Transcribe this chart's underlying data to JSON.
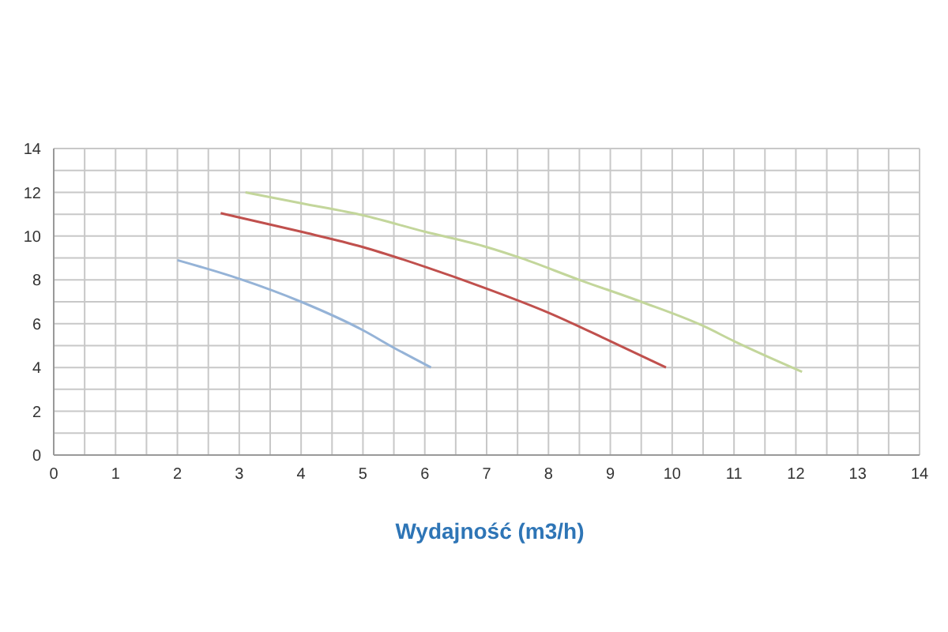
{
  "chart_data": {
    "type": "line",
    "xlabel": "Wydajność (m3/h)",
    "xlim": [
      0,
      14
    ],
    "ylim": [
      0,
      14
    ],
    "xticks": [
      0,
      {
        "value": 0.5,
        "label": null
      },
      1,
      {
        "value": 1.5,
        "label": null
      },
      2,
      {
        "value": 2.5,
        "label": null
      },
      3,
      {
        "value": 3.5,
        "label": null
      },
      4,
      {
        "value": 4.5,
        "label": null
      },
      5,
      {
        "value": 5.5,
        "label": null
      },
      6,
      {
        "value": 6.5,
        "label": null
      },
      7,
      {
        "value": 7.5,
        "label": null
      },
      8,
      {
        "value": 8.5,
        "label": null
      },
      9,
      {
        "value": 9.5,
        "label": null
      },
      10,
      {
        "value": 10.5,
        "label": null
      },
      11,
      {
        "value": 11.5,
        "label": null
      },
      12,
      {
        "value": 12.5,
        "label": null
      },
      13,
      {
        "value": 13.5,
        "label": null
      },
      14
    ],
    "yticks": [
      0,
      {
        "value": 1,
        "label": null
      },
      2,
      {
        "value": 3,
        "label": null
      },
      4,
      {
        "value": 5,
        "label": null
      },
      6,
      {
        "value": 7,
        "label": null
      },
      8,
      {
        "value": 9,
        "label": null
      },
      10,
      {
        "value": 11,
        "label": null
      },
      12,
      {
        "value": 13,
        "label": null
      },
      14
    ],
    "grid": true,
    "marker": "none",
    "line_style": "solid",
    "series": [
      {
        "color": "#95b3d7",
        "x": [
          2,
          3,
          4,
          5,
          5.5,
          6.1
        ],
        "values": [
          8.9,
          8.05,
          7.0,
          5.7,
          4.9,
          4.0
        ]
      },
      {
        "color": "#c0504d",
        "x": [
          2.7,
          3,
          4,
          5,
          6,
          7,
          8,
          9,
          9.9
        ],
        "values": [
          11.05,
          10.85,
          10.2,
          9.5,
          8.6,
          7.6,
          6.5,
          5.2,
          4.0
        ]
      },
      {
        "color": "#c3d69b",
        "x": [
          3.1,
          4,
          5,
          6,
          7,
          7.5,
          8.5,
          9.5,
          10.5,
          11,
          12.1
        ],
        "values": [
          12.0,
          11.5,
          10.95,
          10.2,
          9.5,
          9.05,
          8.0,
          7.0,
          5.9,
          5.2,
          3.8
        ]
      }
    ]
  }
}
